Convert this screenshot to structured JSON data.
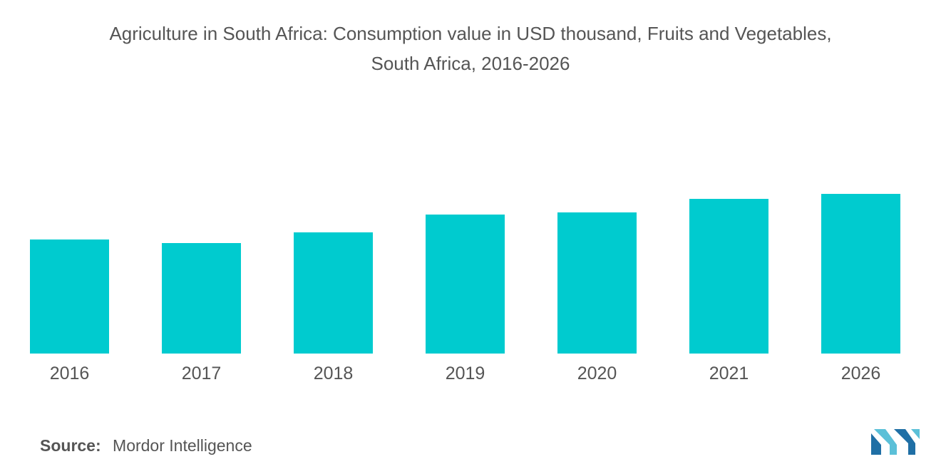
{
  "chart_data": {
    "type": "bar",
    "title_line1": "Agriculture in South Africa: Consumption value in USD thousand, Fruits and Vegetables,",
    "title_line2": "South Africa, 2016-2026",
    "categories": [
      "2016",
      "2017",
      "2018",
      "2019",
      "2020",
      "2021",
      "2026"
    ],
    "values": [
      160,
      155,
      170,
      195,
      198,
      217,
      224
    ],
    "ylim": [
      0,
      250
    ],
    "xlabel": "",
    "ylabel": "",
    "grid": false,
    "bar_color": "#00CBCF"
  },
  "source": {
    "label": "Source:",
    "text": "Mordor Intelligence"
  },
  "logo": {
    "icon": "mordor-intelligence-logo",
    "color_dark": "#1F6FA5",
    "color_light": "#5BC0D8"
  }
}
